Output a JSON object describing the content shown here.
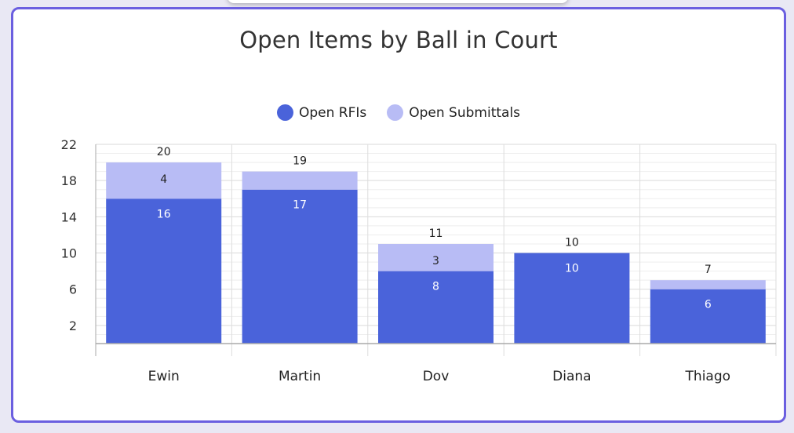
{
  "chart_data": {
    "type": "bar",
    "stacked": true,
    "title": "Open Items by Ball in Court",
    "categories": [
      "Ewin",
      "Martin",
      "Dov",
      "Diana",
      "Thiago"
    ],
    "series": [
      {
        "name": "Open RFIs",
        "color": "#4a63da",
        "values": [
          16,
          17,
          8,
          10,
          6
        ],
        "label_color": "#ffffff"
      },
      {
        "name": "Open Submittals",
        "color": "#b8bcf5",
        "values": [
          4,
          2,
          3,
          0,
          1
        ],
        "label_color": "#222222"
      }
    ],
    "totals": [
      20,
      19,
      11,
      10,
      7
    ],
    "segment_labels": [
      [
        "16",
        "17",
        "8",
        "10",
        "6"
      ],
      [
        "4",
        "",
        "3",
        "",
        ""
      ]
    ],
    "ylim": [
      0,
      22
    ],
    "yticks": [
      2,
      6,
      10,
      14,
      18,
      22
    ],
    "grid": true,
    "legend_position": "top-center"
  }
}
